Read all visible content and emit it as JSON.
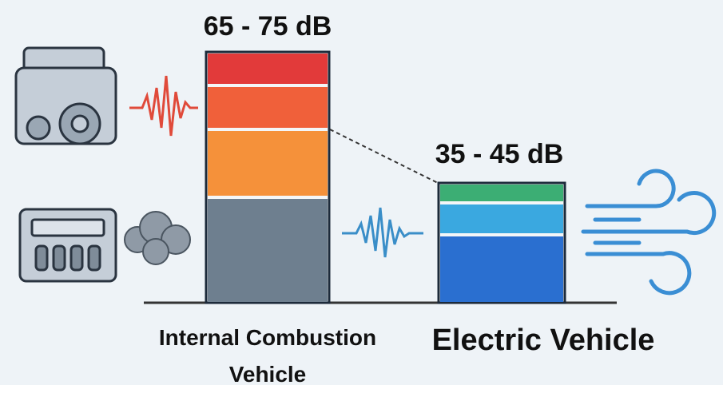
{
  "labels": {
    "ice_level": "65 - 75 dB",
    "ev_level": "35 - 45 dB",
    "ice_name": "Internal Combustion Vehicle",
    "ev_name": "Electric Vehicle"
  }
}
